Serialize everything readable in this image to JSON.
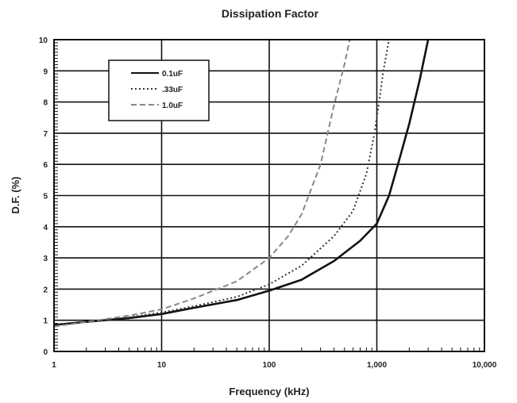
{
  "chart_data": {
    "type": "line",
    "title": "Dissipation Factor",
    "xlabel": "Frequency (kHz)",
    "ylabel": "D.F. (%)",
    "x_scale": "log",
    "xlim": [
      1,
      10000
    ],
    "ylim": [
      0,
      10
    ],
    "x_ticks": [
      1,
      10,
      100,
      1000,
      10000
    ],
    "x_tick_labels": [
      "1",
      "10",
      "100",
      "1,000",
      "10,000"
    ],
    "y_ticks": [
      0,
      1,
      2,
      3,
      4,
      5,
      6,
      7,
      8,
      9,
      10
    ],
    "y_tick_labels": [
      "0",
      "1",
      "2",
      "3",
      "4",
      "5",
      "6",
      "7",
      "8",
      "9",
      "10"
    ],
    "grid": true,
    "legend_position": "top-left",
    "series": [
      {
        "name": "0.1uF",
        "style": "solid",
        "color": "#111111",
        "x": [
          1,
          2,
          5,
          10,
          20,
          50,
          100,
          200,
          400,
          700,
          1000,
          1300,
          1600,
          2000,
          2500,
          3000
        ],
        "y": [
          0.85,
          0.95,
          1.07,
          1.2,
          1.4,
          1.65,
          1.95,
          2.3,
          2.9,
          3.55,
          4.1,
          5.0,
          6.1,
          7.3,
          8.7,
          10.0
        ]
      },
      {
        "name": ".33uF",
        "style": "dotted",
        "color": "#333333",
        "x": [
          1,
          2,
          5,
          10,
          20,
          50,
          100,
          200,
          400,
          600,
          800,
          950,
          1050,
          1150,
          1300
        ],
        "y": [
          0.85,
          0.95,
          1.1,
          1.25,
          1.45,
          1.75,
          2.15,
          2.75,
          3.7,
          4.5,
          5.7,
          7.0,
          8.0,
          9.0,
          10.0
        ]
      },
      {
        "name": "1.0uF",
        "style": "dashed",
        "color": "#888888",
        "x": [
          1,
          2,
          5,
          10,
          20,
          50,
          100,
          150,
          200,
          300,
          400,
          500,
          560
        ],
        "y": [
          0.8,
          0.95,
          1.15,
          1.35,
          1.7,
          2.25,
          3.0,
          3.7,
          4.4,
          6.0,
          7.9,
          9.2,
          10.0
        ]
      }
    ]
  }
}
